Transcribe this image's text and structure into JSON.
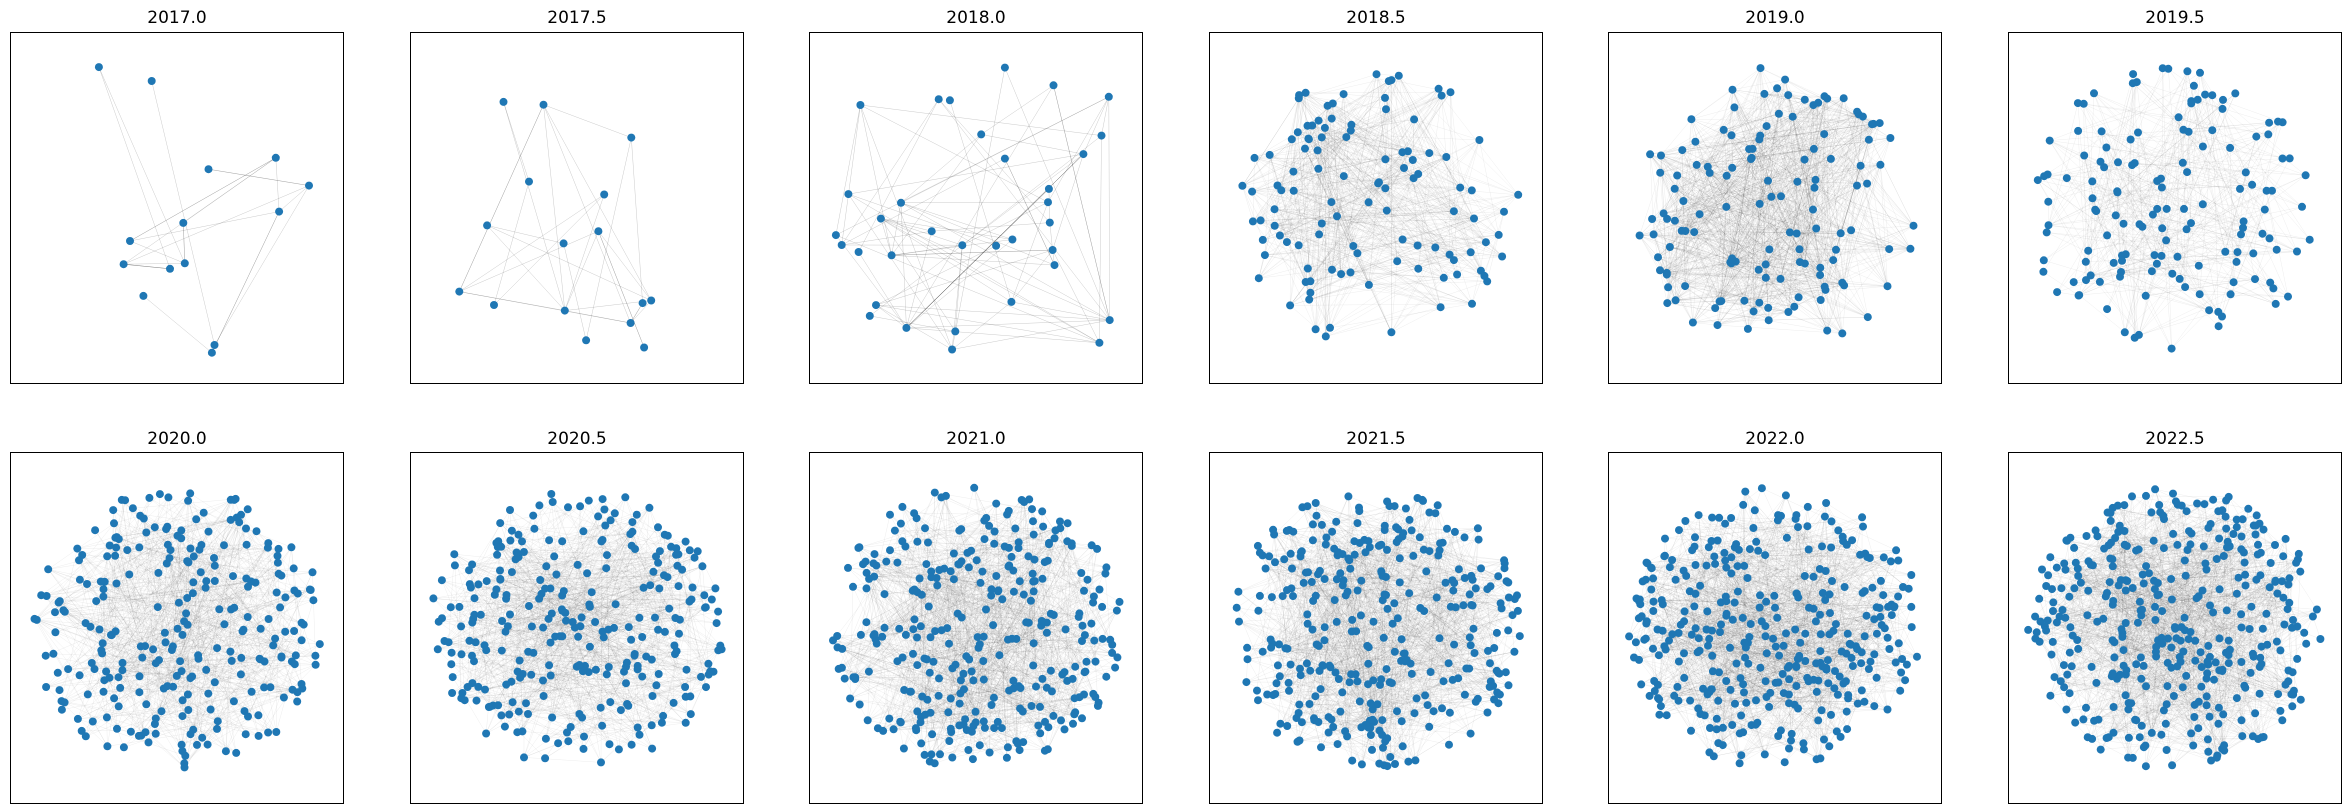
{
  "figure": {
    "panels": [
      {
        "title": "2017.0",
        "nodes": 14,
        "edge_density": 0.45
      },
      {
        "title": "2017.5",
        "nodes": 16,
        "edge_density": 0.45
      },
      {
        "title": "2018.0",
        "nodes": 34,
        "edge_density": 0.35
      },
      {
        "title": "2018.5",
        "nodes": 110,
        "edge_density": 0.35
      },
      {
        "title": "2019.0",
        "nodes": 130,
        "edge_density": 0.45
      },
      {
        "title": "2019.5",
        "nodes": 140,
        "edge_density": 0.1
      },
      {
        "title": "2020.0",
        "nodes": 260,
        "edge_density": 0.06
      },
      {
        "title": "2020.5",
        "nodes": 280,
        "edge_density": 0.06
      },
      {
        "title": "2021.0",
        "nodes": 320,
        "edge_density": 0.06
      },
      {
        "title": "2021.5",
        "nodes": 330,
        "edge_density": 0.06
      },
      {
        "title": "2022.0",
        "nodes": 360,
        "edge_density": 0.09
      },
      {
        "title": "2022.5",
        "nodes": 380,
        "edge_density": 0.12
      }
    ],
    "node_color": "#1f77b4",
    "edge_color": "#000000"
  }
}
